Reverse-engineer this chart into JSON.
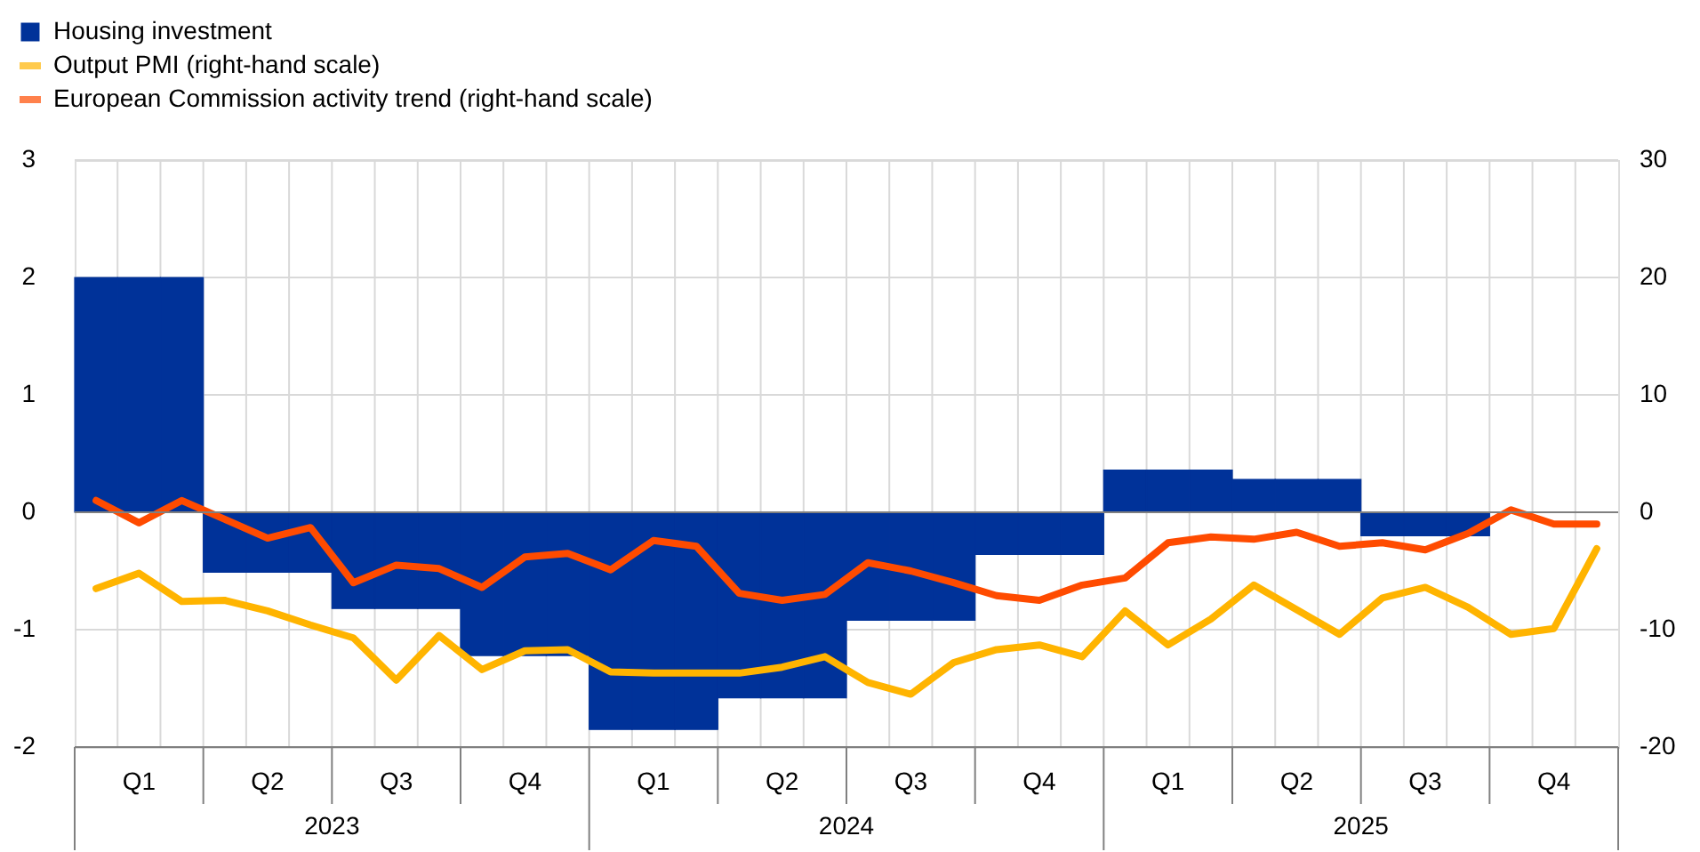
{
  "chart_data": {
    "type": "bar",
    "categories": [
      null,
      "Q1",
      null,
      null,
      "Q2",
      null,
      null,
      "Q3",
      null,
      null,
      "Q4",
      null,
      null,
      "Q1",
      null,
      null,
      "Q2",
      null,
      null,
      "Q3",
      null,
      null,
      "Q4",
      null,
      null,
      "Q1",
      null,
      null,
      "Q2",
      null,
      null,
      "Q3",
      null,
      null,
      "Q4",
      null
    ],
    "annotations": [
      "2023",
      "2024",
      "2025"
    ],
    "ylim": [
      -2,
      3
    ],
    "yticks": [
      -2,
      -1,
      0,
      1,
      2,
      3
    ],
    "y2lim": [
      -20,
      30
    ],
    "y2ticks": [
      -20,
      -10,
      0,
      10,
      20,
      30
    ],
    "grid": true,
    "legend": "top left",
    "series": [
      {
        "name": "Housing investment",
        "color": "#003299",
        "values": [
          2.0,
          2.0,
          2.0,
          -0.51,
          -0.51,
          -0.51,
          -0.82,
          -0.82,
          -0.82,
          -1.22,
          -1.22,
          -1.22,
          -1.85,
          -1.85,
          -1.85,
          -1.58,
          -1.58,
          -1.58,
          -0.92,
          -0.92,
          -0.92,
          -0.36,
          -0.36,
          -0.36,
          0.36,
          0.36,
          0.36,
          0.28,
          0.28,
          0.28,
          -0.2,
          -0.2,
          -0.2,
          null,
          null,
          null
        ]
      },
      {
        "name": "Output PMI (right-hand scale)",
        "type": "line",
        "axis": "y2",
        "color": "#ffb400",
        "values": [
          -6.5,
          -5.2,
          -7.6,
          -7.5,
          -8.4,
          -9.6,
          -10.7,
          -14.3,
          -10.5,
          -13.4,
          -11.8,
          -11.7,
          -13.6,
          -13.7,
          -13.7,
          -13.7,
          -13.2,
          -12.3,
          -14.5,
          -15.5,
          -12.8,
          -11.7,
          -11.3,
          -12.3,
          -8.4,
          -11.3,
          -9.1,
          -6.2,
          -8.3,
          -10.4,
          -7.3,
          -6.4,
          -8.1,
          -10.4,
          -9.9,
          -3.1
        ]
      },
      {
        "name": "European Commission activity trend (right-hand scale)",
        "type": "line",
        "axis": "y2",
        "color": "#ff4b00",
        "values": [
          1.0,
          -0.9,
          1.0,
          -0.6,
          -2.2,
          -1.3,
          -6.0,
          -4.5,
          -4.8,
          -6.4,
          -3.8,
          -3.5,
          -4.9,
          -2.4,
          -2.9,
          -6.9,
          -7.5,
          -7.0,
          -4.3,
          -5.0,
          -6.0,
          -7.1,
          -7.5,
          -6.2,
          -5.6,
          -2.6,
          -2.1,
          -2.3,
          -1.7,
          -2.9,
          -2.6,
          -3.2,
          -1.8,
          0.2,
          -1.0,
          -1.0
        ]
      }
    ]
  }
}
